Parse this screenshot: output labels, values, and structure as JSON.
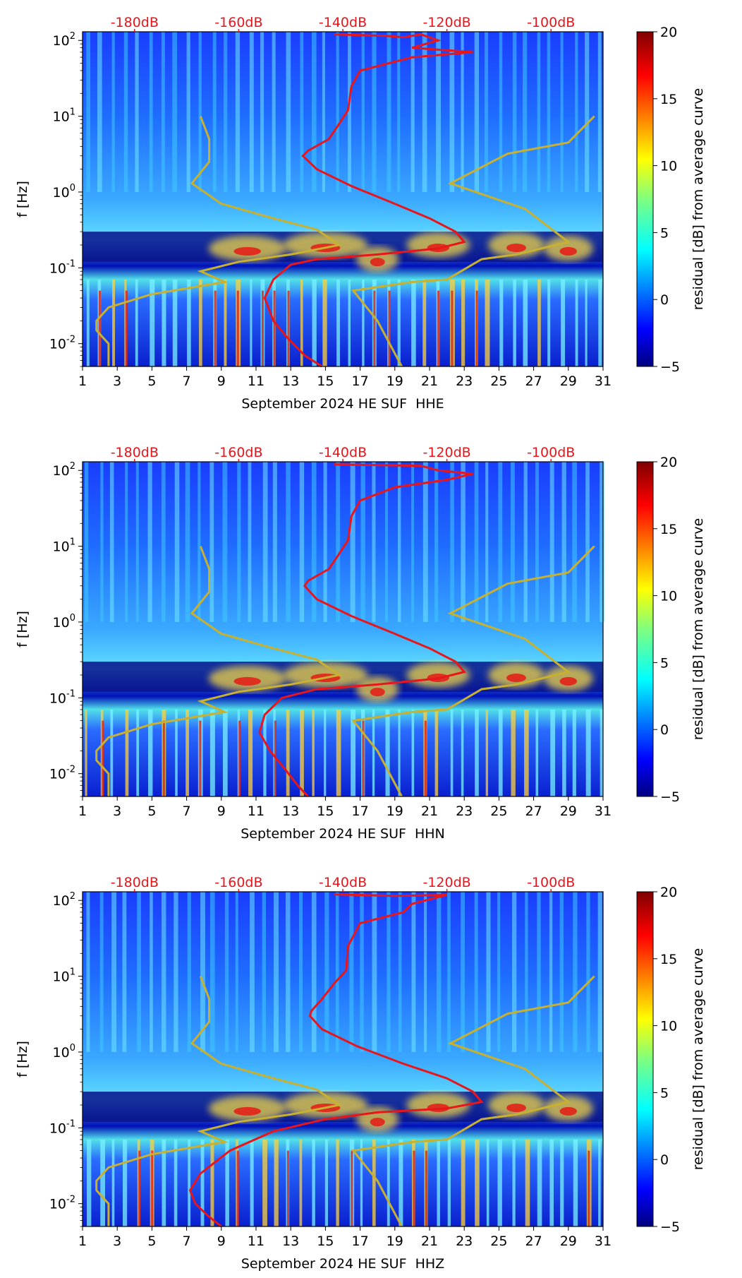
{
  "chart_data": [
    {
      "type": "heatmap",
      "channel": "HHE",
      "xlabel": "September 2024 HE SUF  HHE",
      "ylabel": "f [Hz]",
      "x_ticks": [
        "1",
        "3",
        "5",
        "7",
        "9",
        "11",
        "13",
        "15",
        "17",
        "19",
        "21",
        "23",
        "25",
        "27",
        "29",
        "31"
      ],
      "y_ticks": [
        {
          "exp": 2,
          "label": "10"
        },
        {
          "exp": 1,
          "label": "10"
        },
        {
          "exp": 0,
          "label": "10"
        },
        {
          "exp": -1,
          "label": "10"
        },
        {
          "exp": -2,
          "label": "10"
        }
      ],
      "y_range": [
        0.005,
        130
      ],
      "top_ticks": [
        {
          "day": 4,
          "label": "-180dB"
        },
        {
          "day": 10,
          "label": "-160dB"
        },
        {
          "day": 16,
          "label": "-140dB"
        },
        {
          "day": 22,
          "label": "-120dB"
        },
        {
          "day": 28,
          "label": "-100dB"
        }
      ],
      "colorbar": {
        "label": "residual [dB] from average curve",
        "ticks": [
          "20",
          "15",
          "10",
          "5",
          "0",
          "−5"
        ],
        "range": [
          -5,
          20
        ]
      },
      "average_psd_curve": [
        [
          15.5,
          120
        ],
        [
          18.5,
          115
        ],
        [
          19.5,
          110
        ],
        [
          20.5,
          120
        ],
        [
          21.5,
          100
        ],
        [
          20,
          80
        ],
        [
          23.5,
          70
        ],
        [
          20,
          60
        ],
        [
          17,
          40
        ],
        [
          16.5,
          25
        ],
        [
          16.3,
          12
        ],
        [
          15.8,
          8
        ],
        [
          15.2,
          5
        ],
        [
          14,
          3.5
        ],
        [
          13.7,
          3
        ],
        [
          14.5,
          2
        ],
        [
          16.5,
          1.2
        ],
        [
          19,
          0.7
        ],
        [
          21,
          0.45
        ],
        [
          22.5,
          0.3
        ],
        [
          23,
          0.22
        ],
        [
          21.5,
          0.18
        ],
        [
          18,
          0.15
        ],
        [
          14.5,
          0.13
        ],
        [
          13,
          0.11
        ],
        [
          12,
          0.07
        ],
        [
          11.5,
          0.04
        ],
        [
          12,
          0.02
        ],
        [
          12.8,
          0.012
        ],
        [
          13.8,
          0.007
        ],
        [
          14.8,
          0.005
        ]
      ],
      "noise_model_curves": [
        [
          [
            7.8,
            10
          ],
          [
            8.3,
            5
          ],
          [
            8.3,
            2.5
          ],
          [
            7.3,
            1.3
          ],
          [
            9,
            0.7
          ],
          [
            12,
            0.45
          ],
          [
            14.5,
            0.32
          ],
          [
            15.8,
            0.2
          ],
          [
            13,
            0.15
          ],
          [
            10,
            0.12
          ],
          [
            7.8,
            0.09
          ],
          [
            9.2,
            0.065
          ],
          [
            5,
            0.045
          ],
          [
            2.5,
            0.03
          ],
          [
            1.8,
            0.02
          ],
          [
            1.8,
            0.015
          ],
          [
            2.5,
            0.01
          ],
          [
            2.5,
            0.005
          ]
        ],
        [
          [
            30.5,
            10
          ],
          [
            29,
            4.5
          ],
          [
            25.5,
            3.2
          ],
          [
            22.2,
            1.3
          ],
          [
            26.5,
            0.6
          ],
          [
            29,
            0.22
          ],
          [
            26,
            0.15
          ],
          [
            24,
            0.13
          ],
          [
            22,
            0.07
          ],
          [
            20,
            0.065
          ],
          [
            16.6,
            0.05
          ],
          [
            18,
            0.02
          ],
          [
            19.4,
            0.005
          ]
        ]
      ]
    },
    {
      "type": "heatmap",
      "channel": "HHN",
      "xlabel": "September 2024 HE SUF  HHN",
      "ylabel": "f [Hz]",
      "x_ticks": [
        "1",
        "3",
        "5",
        "7",
        "9",
        "11",
        "13",
        "15",
        "17",
        "19",
        "21",
        "23",
        "25",
        "27",
        "29",
        "31"
      ],
      "y_ticks": [
        {
          "exp": 2,
          "label": "10"
        },
        {
          "exp": 1,
          "label": "10"
        },
        {
          "exp": 0,
          "label": "10"
        },
        {
          "exp": -1,
          "label": "10"
        },
        {
          "exp": -2,
          "label": "10"
        }
      ],
      "y_range": [
        0.005,
        130
      ],
      "top_ticks": [
        {
          "day": 4,
          "label": "-180dB"
        },
        {
          "day": 10,
          "label": "-160dB"
        },
        {
          "day": 16,
          "label": "-140dB"
        },
        {
          "day": 22,
          "label": "-120dB"
        },
        {
          "day": 28,
          "label": "-100dB"
        }
      ],
      "colorbar": {
        "label": "residual [dB] from average curve",
        "ticks": [
          "20",
          "15",
          "10",
          "5",
          "0",
          "−5"
        ],
        "range": [
          -5,
          20
        ]
      },
      "average_psd_curve": [
        [
          15.5,
          120
        ],
        [
          20.5,
          115
        ],
        [
          21.5,
          100
        ],
        [
          23.5,
          90
        ],
        [
          22,
          75
        ],
        [
          19,
          60
        ],
        [
          17,
          40
        ],
        [
          16.5,
          25
        ],
        [
          16.3,
          12
        ],
        [
          15.8,
          8
        ],
        [
          15.2,
          5
        ],
        [
          14,
          3.5
        ],
        [
          13.8,
          3
        ],
        [
          14.5,
          2
        ],
        [
          16.5,
          1.2
        ],
        [
          19,
          0.7
        ],
        [
          21,
          0.45
        ],
        [
          22.5,
          0.3
        ],
        [
          23,
          0.22
        ],
        [
          21.5,
          0.18
        ],
        [
          18,
          0.15
        ],
        [
          14.5,
          0.13
        ],
        [
          12.5,
          0.1
        ],
        [
          11.5,
          0.06
        ],
        [
          11.2,
          0.035
        ],
        [
          11.8,
          0.02
        ],
        [
          12.6,
          0.012
        ],
        [
          13.4,
          0.007
        ],
        [
          14,
          0.005
        ]
      ],
      "noise_model_curves": [
        [
          [
            7.8,
            10
          ],
          [
            8.3,
            5
          ],
          [
            8.3,
            2.5
          ],
          [
            7.3,
            1.3
          ],
          [
            9,
            0.7
          ],
          [
            12,
            0.45
          ],
          [
            14.5,
            0.32
          ],
          [
            15.8,
            0.2
          ],
          [
            13,
            0.15
          ],
          [
            10,
            0.12
          ],
          [
            7.8,
            0.09
          ],
          [
            9.2,
            0.065
          ],
          [
            5,
            0.045
          ],
          [
            2.5,
            0.03
          ],
          [
            1.8,
            0.02
          ],
          [
            1.8,
            0.015
          ],
          [
            2.5,
            0.01
          ],
          [
            2.5,
            0.005
          ]
        ],
        [
          [
            30.5,
            10
          ],
          [
            29,
            4.5
          ],
          [
            25.5,
            3.2
          ],
          [
            22.2,
            1.3
          ],
          [
            26.5,
            0.6
          ],
          [
            29,
            0.22
          ],
          [
            26,
            0.15
          ],
          [
            24,
            0.13
          ],
          [
            22,
            0.07
          ],
          [
            20,
            0.065
          ],
          [
            16.6,
            0.05
          ],
          [
            18,
            0.02
          ],
          [
            19.4,
            0.005
          ]
        ]
      ]
    },
    {
      "type": "heatmap",
      "channel": "HHZ",
      "xlabel": "September 2024 HE SUF  HHZ",
      "ylabel": "f [Hz]",
      "x_ticks": [
        "1",
        "3",
        "5",
        "7",
        "9",
        "11",
        "13",
        "15",
        "17",
        "19",
        "21",
        "23",
        "25",
        "27",
        "29",
        "31"
      ],
      "y_ticks": [
        {
          "exp": 2,
          "label": "10"
        },
        {
          "exp": 1,
          "label": "10"
        },
        {
          "exp": 0,
          "label": "10"
        },
        {
          "exp": -1,
          "label": "10"
        },
        {
          "exp": -2,
          "label": "10"
        }
      ],
      "y_range": [
        0.005,
        130
      ],
      "top_ticks": [
        {
          "day": 4,
          "label": "-180dB"
        },
        {
          "day": 10,
          "label": "-160dB"
        },
        {
          "day": 16,
          "label": "-140dB"
        },
        {
          "day": 22,
          "label": "-120dB"
        },
        {
          "day": 28,
          "label": "-100dB"
        }
      ],
      "colorbar": {
        "label": "residual [dB] from average curve",
        "ticks": [
          "20",
          "15",
          "10",
          "5",
          "0",
          "−5"
        ],
        "range": [
          -5,
          20
        ]
      },
      "average_psd_curve": [
        [
          15.5,
          120
        ],
        [
          19,
          115
        ],
        [
          22,
          118
        ],
        [
          20,
          90
        ],
        [
          19.5,
          70
        ],
        [
          17,
          50
        ],
        [
          16.3,
          25
        ],
        [
          16.2,
          12
        ],
        [
          15.5,
          8
        ],
        [
          14.8,
          5
        ],
        [
          14.2,
          3.5
        ],
        [
          14.1,
          3
        ],
        [
          14.8,
          2
        ],
        [
          16.8,
          1.2
        ],
        [
          19.5,
          0.7
        ],
        [
          22,
          0.45
        ],
        [
          23.5,
          0.3
        ],
        [
          24,
          0.22
        ],
        [
          22,
          0.18
        ],
        [
          18,
          0.16
        ],
        [
          15,
          0.13
        ],
        [
          12,
          0.09
        ],
        [
          9.5,
          0.05
        ],
        [
          7.8,
          0.025
        ],
        [
          7.2,
          0.015
        ],
        [
          7.5,
          0.01
        ],
        [
          8.2,
          0.007
        ],
        [
          9,
          0.005
        ]
      ],
      "noise_model_curves": [
        [
          [
            7.8,
            10
          ],
          [
            8.3,
            5
          ],
          [
            8.3,
            2.5
          ],
          [
            7.3,
            1.3
          ],
          [
            9,
            0.7
          ],
          [
            12,
            0.45
          ],
          [
            14.5,
            0.32
          ],
          [
            15.8,
            0.2
          ],
          [
            13,
            0.15
          ],
          [
            10,
            0.12
          ],
          [
            7.8,
            0.09
          ],
          [
            9.2,
            0.065
          ],
          [
            5,
            0.045
          ],
          [
            2.5,
            0.03
          ],
          [
            1.8,
            0.02
          ],
          [
            1.8,
            0.015
          ],
          [
            2.5,
            0.01
          ],
          [
            2.5,
            0.005
          ]
        ],
        [
          [
            30.5,
            10
          ],
          [
            29,
            4.5
          ],
          [
            25.5,
            3.2
          ],
          [
            22.2,
            1.3
          ],
          [
            26.5,
            0.6
          ],
          [
            29,
            0.22
          ],
          [
            26,
            0.15
          ],
          [
            24,
            0.13
          ],
          [
            22,
            0.07
          ],
          [
            20,
            0.065
          ],
          [
            16.6,
            0.05
          ],
          [
            18,
            0.02
          ],
          [
            19.4,
            0.005
          ]
        ]
      ]
    }
  ],
  "colors": {
    "average_curve": "#e8161b",
    "noise_model": "#c8b030",
    "top_labels": "#e8161b",
    "text": "#000000"
  }
}
